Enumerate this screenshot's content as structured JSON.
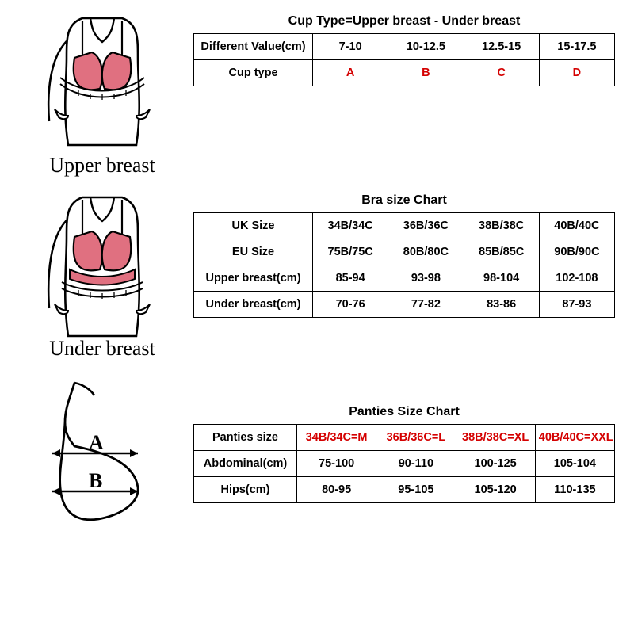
{
  "section1": {
    "caption": "Upper breast",
    "title": "Cup Type=Upper breast - Under breast",
    "rows": [
      {
        "label": "Different Value(cm)",
        "cells": [
          "7-10",
          "10-12.5",
          "12.5-15",
          "15-17.5"
        ],
        "red": false
      },
      {
        "label": "Cup type",
        "cells": [
          "A",
          "B",
          "C",
          "D"
        ],
        "red": true
      }
    ],
    "label_col_width": "150px"
  },
  "section2": {
    "caption": "Under breast",
    "title": "Bra size Chart",
    "rows": [
      {
        "label": "UK Size",
        "cells": [
          "34B/34C",
          "36B/36C",
          "38B/38C",
          "40B/40C"
        ],
        "red": false
      },
      {
        "label": "EU Size",
        "cells": [
          "75B/75C",
          "80B/80C",
          "85B/85C",
          "90B/90C"
        ],
        "red": false
      },
      {
        "label": "Upper breast(cm)",
        "cells": [
          "85-94",
          "93-98",
          "98-104",
          "102-108"
        ],
        "red": false
      },
      {
        "label": "Under breast(cm)",
        "cells": [
          "70-76",
          "77-82",
          "83-86",
          "87-93"
        ],
        "red": false
      }
    ],
    "label_col_width": "150px"
  },
  "section3": {
    "title": "Panties Size Chart",
    "rows": [
      {
        "label": "Panties size",
        "cells": [
          "34B/34C=M",
          "36B/36C=L",
          "38B/38C=XL",
          "40B/40C=XXL"
        ],
        "red": true
      },
      {
        "label": "Abdominal(cm)",
        "cells": [
          "75-100",
          "90-110",
          "100-125",
          "105-104"
        ],
        "red": false
      },
      {
        "label": "Hips(cm)",
        "cells": [
          "80-95",
          "95-105",
          "105-120",
          "110-135"
        ],
        "red": false
      }
    ],
    "label_col_width": "130px",
    "label_a": "A",
    "label_b": "B"
  },
  "colors": {
    "line": "#000000",
    "bra_fill": "#e07080",
    "red_text": "#d40000"
  }
}
